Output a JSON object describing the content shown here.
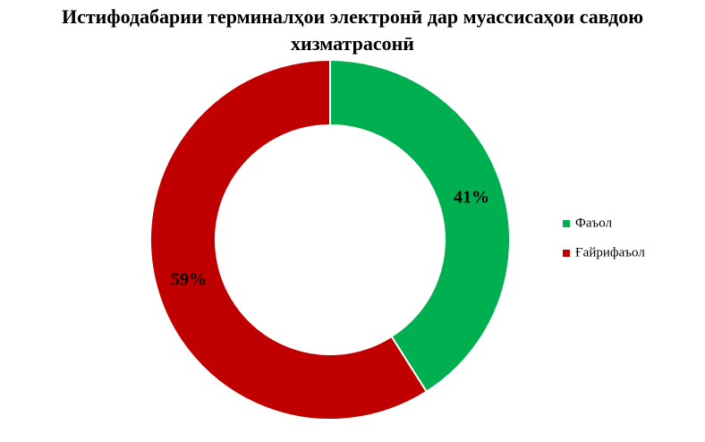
{
  "chart_data": {
    "type": "donut",
    "title": "Истифодабарии терминалҳои электронӣ дар муассисаҳои савдою хизматрасонӣ",
    "categories": [
      "Фаъол",
      "Ғайрифаъол"
    ],
    "values": [
      41,
      59
    ],
    "value_labels": [
      "41%",
      "59%"
    ],
    "colors": [
      "#00b050",
      "#c00000"
    ],
    "legend": "right"
  }
}
